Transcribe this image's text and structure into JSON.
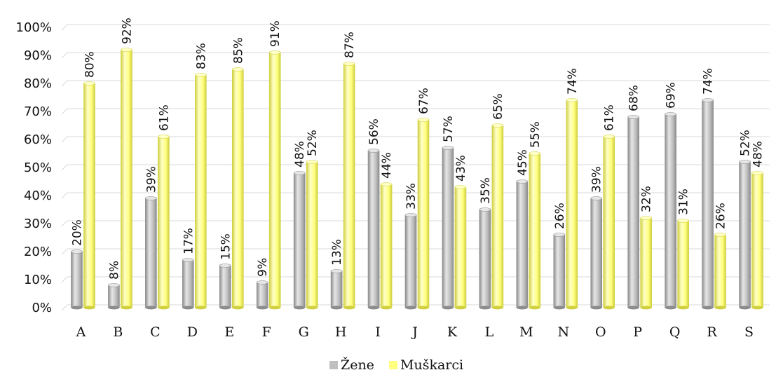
{
  "chart_data": {
    "type": "bar",
    "title": "",
    "xlabel": "",
    "ylabel": "",
    "categories": [
      "A",
      "B",
      "C",
      "D",
      "E",
      "F",
      "G",
      "H",
      "I",
      "J",
      "K",
      "L",
      "M",
      "N",
      "O",
      "P",
      "Q",
      "R",
      "S"
    ],
    "series": [
      {
        "name": "Žene",
        "values": [
          20,
          8,
          39,
          17,
          15,
          9,
          48,
          13,
          56,
          33,
          57,
          35,
          45,
          26,
          39,
          68,
          69,
          74,
          52
        ]
      },
      {
        "name": "Muškarci",
        "values": [
          80,
          92,
          61,
          83,
          85,
          91,
          52,
          87,
          44,
          67,
          43,
          65,
          55,
          74,
          61,
          32,
          31,
          26,
          48
        ]
      }
    ],
    "ylim": [
      0,
      100
    ],
    "yticks": [
      "0%",
      "10%",
      "20%",
      "30%",
      "40%",
      "50%",
      "60%",
      "70%",
      "80%",
      "90%",
      "100%"
    ],
    "value_suffix": "%",
    "grid": true,
    "legend_position": "bottom",
    "colors": {
      "zene_main": "#bfbfbf",
      "zene_light": "#e6e6e6",
      "zene_dark": "#8c8c8c",
      "muskarci_main": "#ffff80",
      "muskarci_light": "#ffffc8",
      "muskarci_dark": "#d0d040",
      "gridline": "#d9d9d9"
    }
  }
}
